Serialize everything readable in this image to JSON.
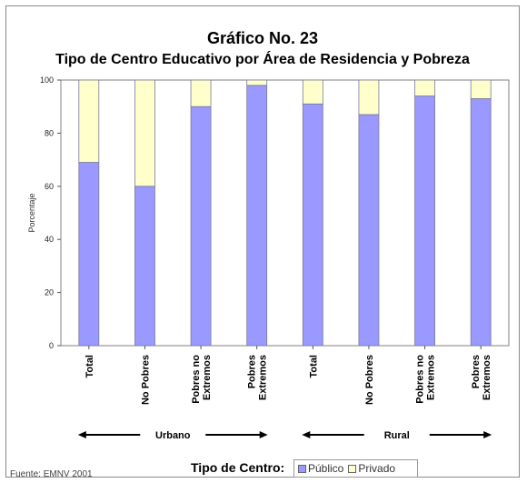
{
  "chart_data": {
    "type": "bar",
    "stacked": true,
    "title": "Gráfico No. 23",
    "subtitle": "Tipo de Centro Educativo por Área de Residencia y Pobreza",
    "ylabel": "Porcentaje",
    "ylim": [
      0,
      100
    ],
    "yticks": [
      0,
      20,
      40,
      60,
      80,
      100
    ],
    "grid": false,
    "categories": [
      [
        "Total"
      ],
      [
        "No Pobres"
      ],
      [
        "Pobres no",
        "Extremos"
      ],
      [
        "Pobres",
        "Extremos"
      ],
      [
        "Total"
      ],
      [
        "No Pobres"
      ],
      [
        "Pobres no",
        "Extremos"
      ],
      [
        "Pobres",
        "Extremos"
      ]
    ],
    "groups": [
      {
        "label": "Urbano",
        "start": 0,
        "end": 3
      },
      {
        "label": "Rural",
        "start": 4,
        "end": 7
      }
    ],
    "legend_title": "Tipo de Centro:",
    "legend_placement": "bottom",
    "series": [
      {
        "name": "Público",
        "color": "#9999ff",
        "values": [
          69,
          60,
          90,
          98,
          91,
          87,
          94,
          93
        ]
      },
      {
        "name": "Privado",
        "color": "#ffffcc",
        "values": [
          31,
          40,
          10,
          2,
          9,
          13,
          6,
          7
        ]
      }
    ]
  },
  "source": "Fuente: EMNV 2001"
}
